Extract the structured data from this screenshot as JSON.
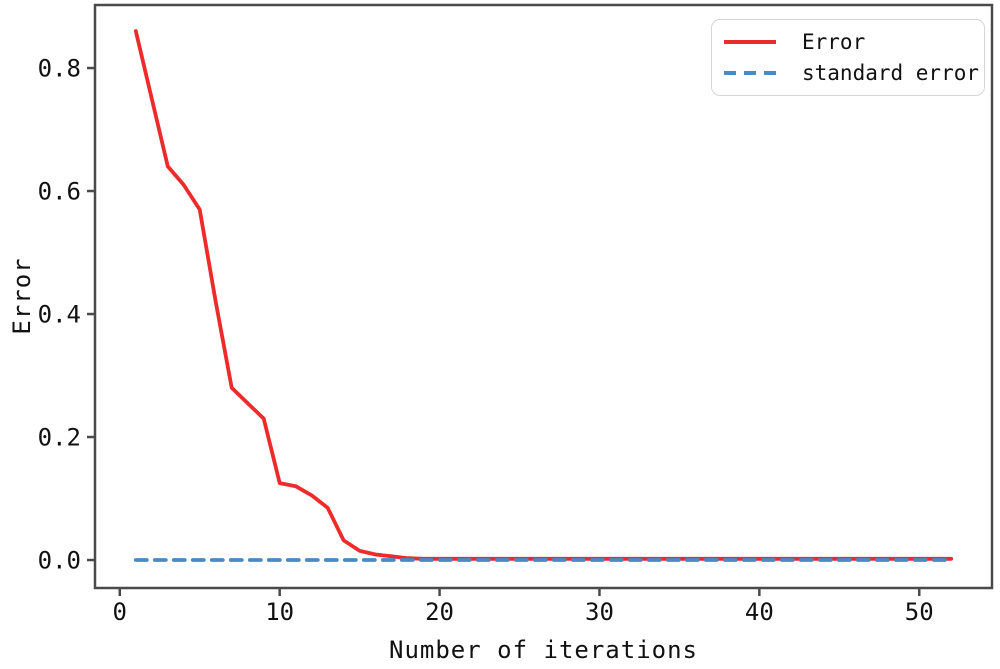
{
  "chart_data": {
    "type": "line",
    "title": "",
    "xlabel": "Number of iterations",
    "ylabel": "Error",
    "xlim": [
      -1.55,
      54.55
    ],
    "ylim": [
      -0.0455,
      0.9025
    ],
    "grid": false,
    "x_ticks": [
      {
        "value": 0,
        "label": "0"
      },
      {
        "value": 10,
        "label": "10"
      },
      {
        "value": 20,
        "label": "20"
      },
      {
        "value": 30,
        "label": "30"
      },
      {
        "value": 40,
        "label": "40"
      },
      {
        "value": 50,
        "label": "50"
      }
    ],
    "y_ticks": [
      {
        "value": 0.0,
        "label": "0.0"
      },
      {
        "value": 0.2,
        "label": "0.2"
      },
      {
        "value": 0.4,
        "label": "0.4"
      },
      {
        "value": 0.6,
        "label": "0.6"
      },
      {
        "value": 0.8,
        "label": "0.8"
      }
    ],
    "legend": {
      "position": "top-right",
      "entries": [
        {
          "label": "Error",
          "color": "#ee2b2b",
          "style": "solid"
        },
        {
          "label": "standard error",
          "color": "#4a89c4",
          "style": "dashed"
        }
      ]
    },
    "series": [
      {
        "name": "Error",
        "color": "#ee2b2b",
        "style": "solid",
        "x": [
          1,
          2,
          3,
          4,
          5,
          6,
          7,
          8,
          9,
          10,
          11,
          12,
          13,
          14,
          15,
          16,
          17,
          18,
          19,
          20,
          21,
          22,
          23,
          24,
          25,
          26,
          27,
          28,
          29,
          30,
          31,
          32,
          33,
          34,
          35,
          36,
          37,
          38,
          39,
          40,
          41,
          42,
          43,
          44,
          45,
          46,
          47,
          48,
          49,
          50,
          51,
          52
        ],
        "y": [
          0.86,
          0.75,
          0.64,
          0.61,
          0.57,
          0.42,
          0.28,
          0.255,
          0.23,
          0.125,
          0.12,
          0.105,
          0.085,
          0.032,
          0.015,
          0.009,
          0.006,
          0.003,
          0.002,
          0.002,
          0.002,
          0.002,
          0.002,
          0.002,
          0.002,
          0.002,
          0.002,
          0.002,
          0.002,
          0.002,
          0.002,
          0.002,
          0.002,
          0.002,
          0.002,
          0.002,
          0.002,
          0.002,
          0.002,
          0.002,
          0.002,
          0.002,
          0.002,
          0.002,
          0.002,
          0.002,
          0.002,
          0.002,
          0.002,
          0.002,
          0.002,
          0.002
        ]
      },
      {
        "name": "standard error",
        "color": "#4a89c4",
        "style": "dashed",
        "x": [
          1,
          52
        ],
        "y": [
          0,
          0
        ]
      }
    ]
  },
  "colors": {
    "axis": "#4a4a4a",
    "text": "#111111",
    "legend_border": "#d5d5d5",
    "background": "#ffffff"
  }
}
